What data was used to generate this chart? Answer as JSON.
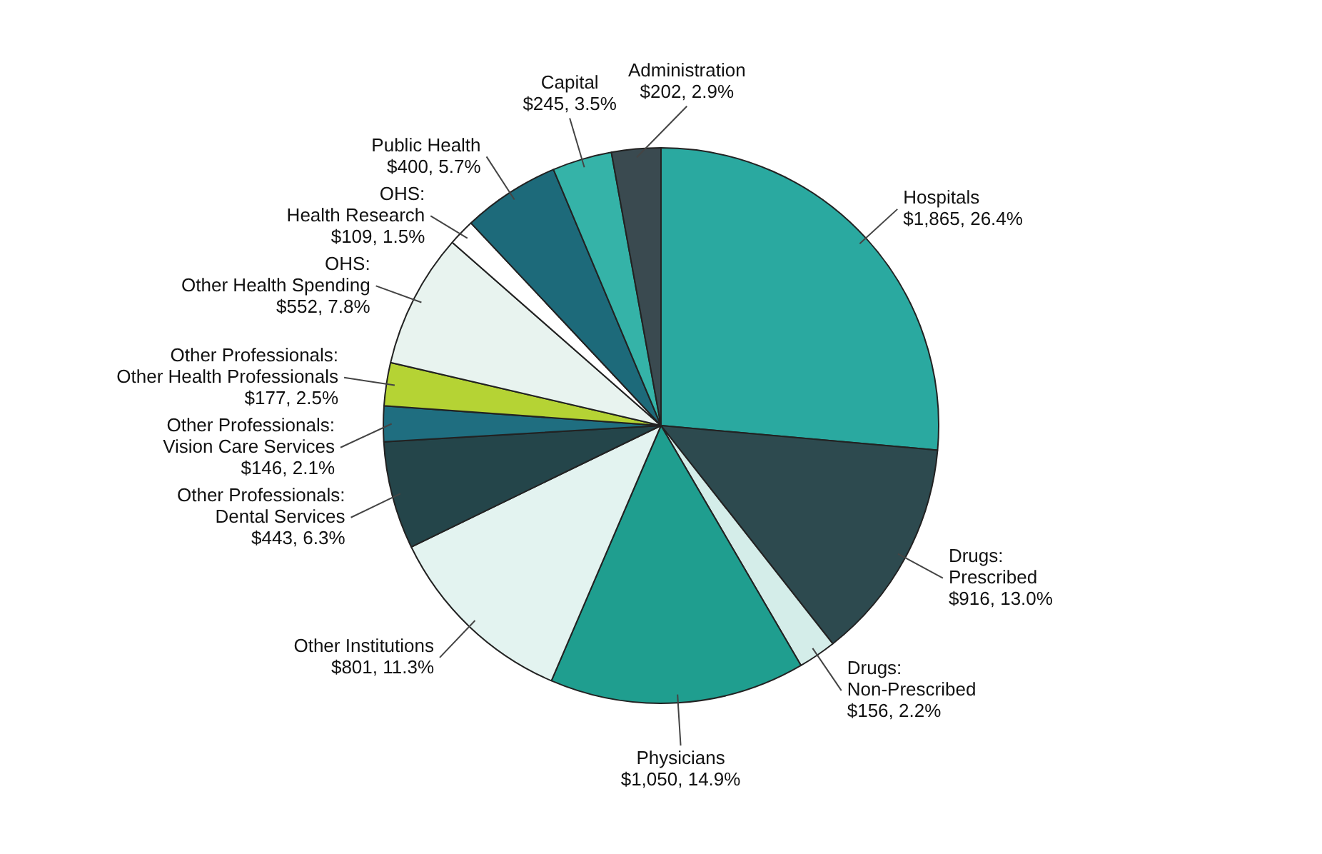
{
  "chart_data": {
    "type": "pie",
    "categories": [
      "Hospitals",
      "Drugs: Prescribed",
      "Drugs: Non-Prescribed",
      "Physicians",
      "Other Institutions",
      "Other Professionals: Dental Services",
      "Other Professionals: Vision Care Services",
      "Other Professionals: Other Health Professionals",
      "OHS: Other Health Spending",
      "OHS: Health Research",
      "Public Health",
      "Capital",
      "Administration"
    ],
    "values": [
      1865,
      916,
      156,
      1050,
      801,
      443,
      146,
      177,
      552,
      109,
      400,
      245,
      202
    ],
    "value_labels": [
      "$1,865, 26.4%",
      "$916, 13.0%",
      "$156, 2.2%",
      "$1,050, 14.9%",
      "$801, 11.3%",
      "$443, 6.3%",
      "$146, 2.1%",
      "$177, 2.5%",
      "$552, 7.8%",
      "$109, 1.5%",
      "$400, 5.7%",
      "$245, 3.5%",
      "$202, 2.9%"
    ],
    "colors": [
      "#2aa9a0",
      "#2d4a4f",
      "#d4ede9",
      "#1f9e8f",
      "#e3f3f0",
      "#24454a",
      "#1f6e80",
      "#b5d334",
      "#e8f3ef",
      "#ffffff",
      "#1d6a7a",
      "#35b3a8",
      "#3a4a50"
    ]
  }
}
